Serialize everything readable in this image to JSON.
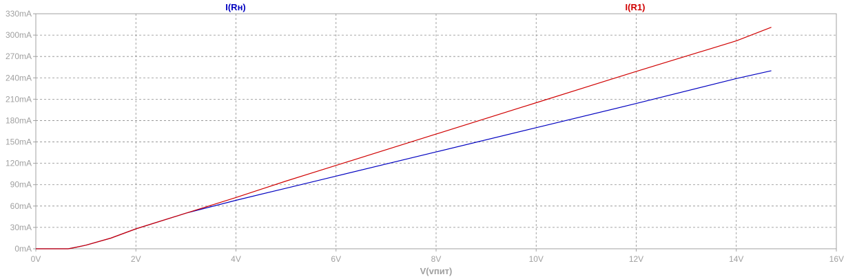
{
  "chart_data": {
    "type": "line",
    "xlabel": "V(vпит)",
    "ylabel": "",
    "xlim": [
      0,
      16
    ],
    "ylim": [
      0,
      330
    ],
    "grid": true,
    "legend_placement": "top",
    "x_ticks": [
      0,
      2,
      4,
      6,
      8,
      10,
      12,
      14,
      16
    ],
    "x_tick_labels": [
      "0V",
      "2V",
      "4V",
      "6V",
      "8V",
      "10V",
      "12V",
      "14V",
      "16V"
    ],
    "y_ticks": [
      0,
      30,
      60,
      90,
      120,
      150,
      180,
      210,
      240,
      270,
      300,
      330
    ],
    "y_tick_labels": [
      "0mA",
      "30mA",
      "60mA",
      "90mA",
      "120mA",
      "150mA",
      "180mA",
      "210mA",
      "240mA",
      "270mA",
      "300mA",
      "330mA"
    ],
    "series": [
      {
        "name": "I(Rн)",
        "color": "#0000c0",
        "x": [
          0,
          0.65,
          0.8,
          1.0,
          1.5,
          2.0,
          3.0,
          4.0,
          5.0,
          6.0,
          8.0,
          10.0,
          12.0,
          14.0,
          14.7
        ],
        "y": [
          0,
          0,
          2,
          5,
          15,
          28,
          50,
          68,
          85,
          102,
          136,
          170,
          204,
          239,
          250
        ]
      },
      {
        "name": "I(R1)",
        "color": "#d00000",
        "x": [
          0,
          0.65,
          0.8,
          1.0,
          1.5,
          2.0,
          3.0,
          4.0,
          5.0,
          6.0,
          8.0,
          10.0,
          12.0,
          14.0,
          14.7
        ],
        "y": [
          0,
          0,
          2,
          5,
          15,
          28,
          50,
          72,
          95,
          117,
          161,
          205,
          249,
          292,
          311
        ]
      }
    ]
  },
  "colors": {
    "grid": "#8a8a8a",
    "axis": "#a0a0a0",
    "tick_text": "#a0a0a0"
  }
}
